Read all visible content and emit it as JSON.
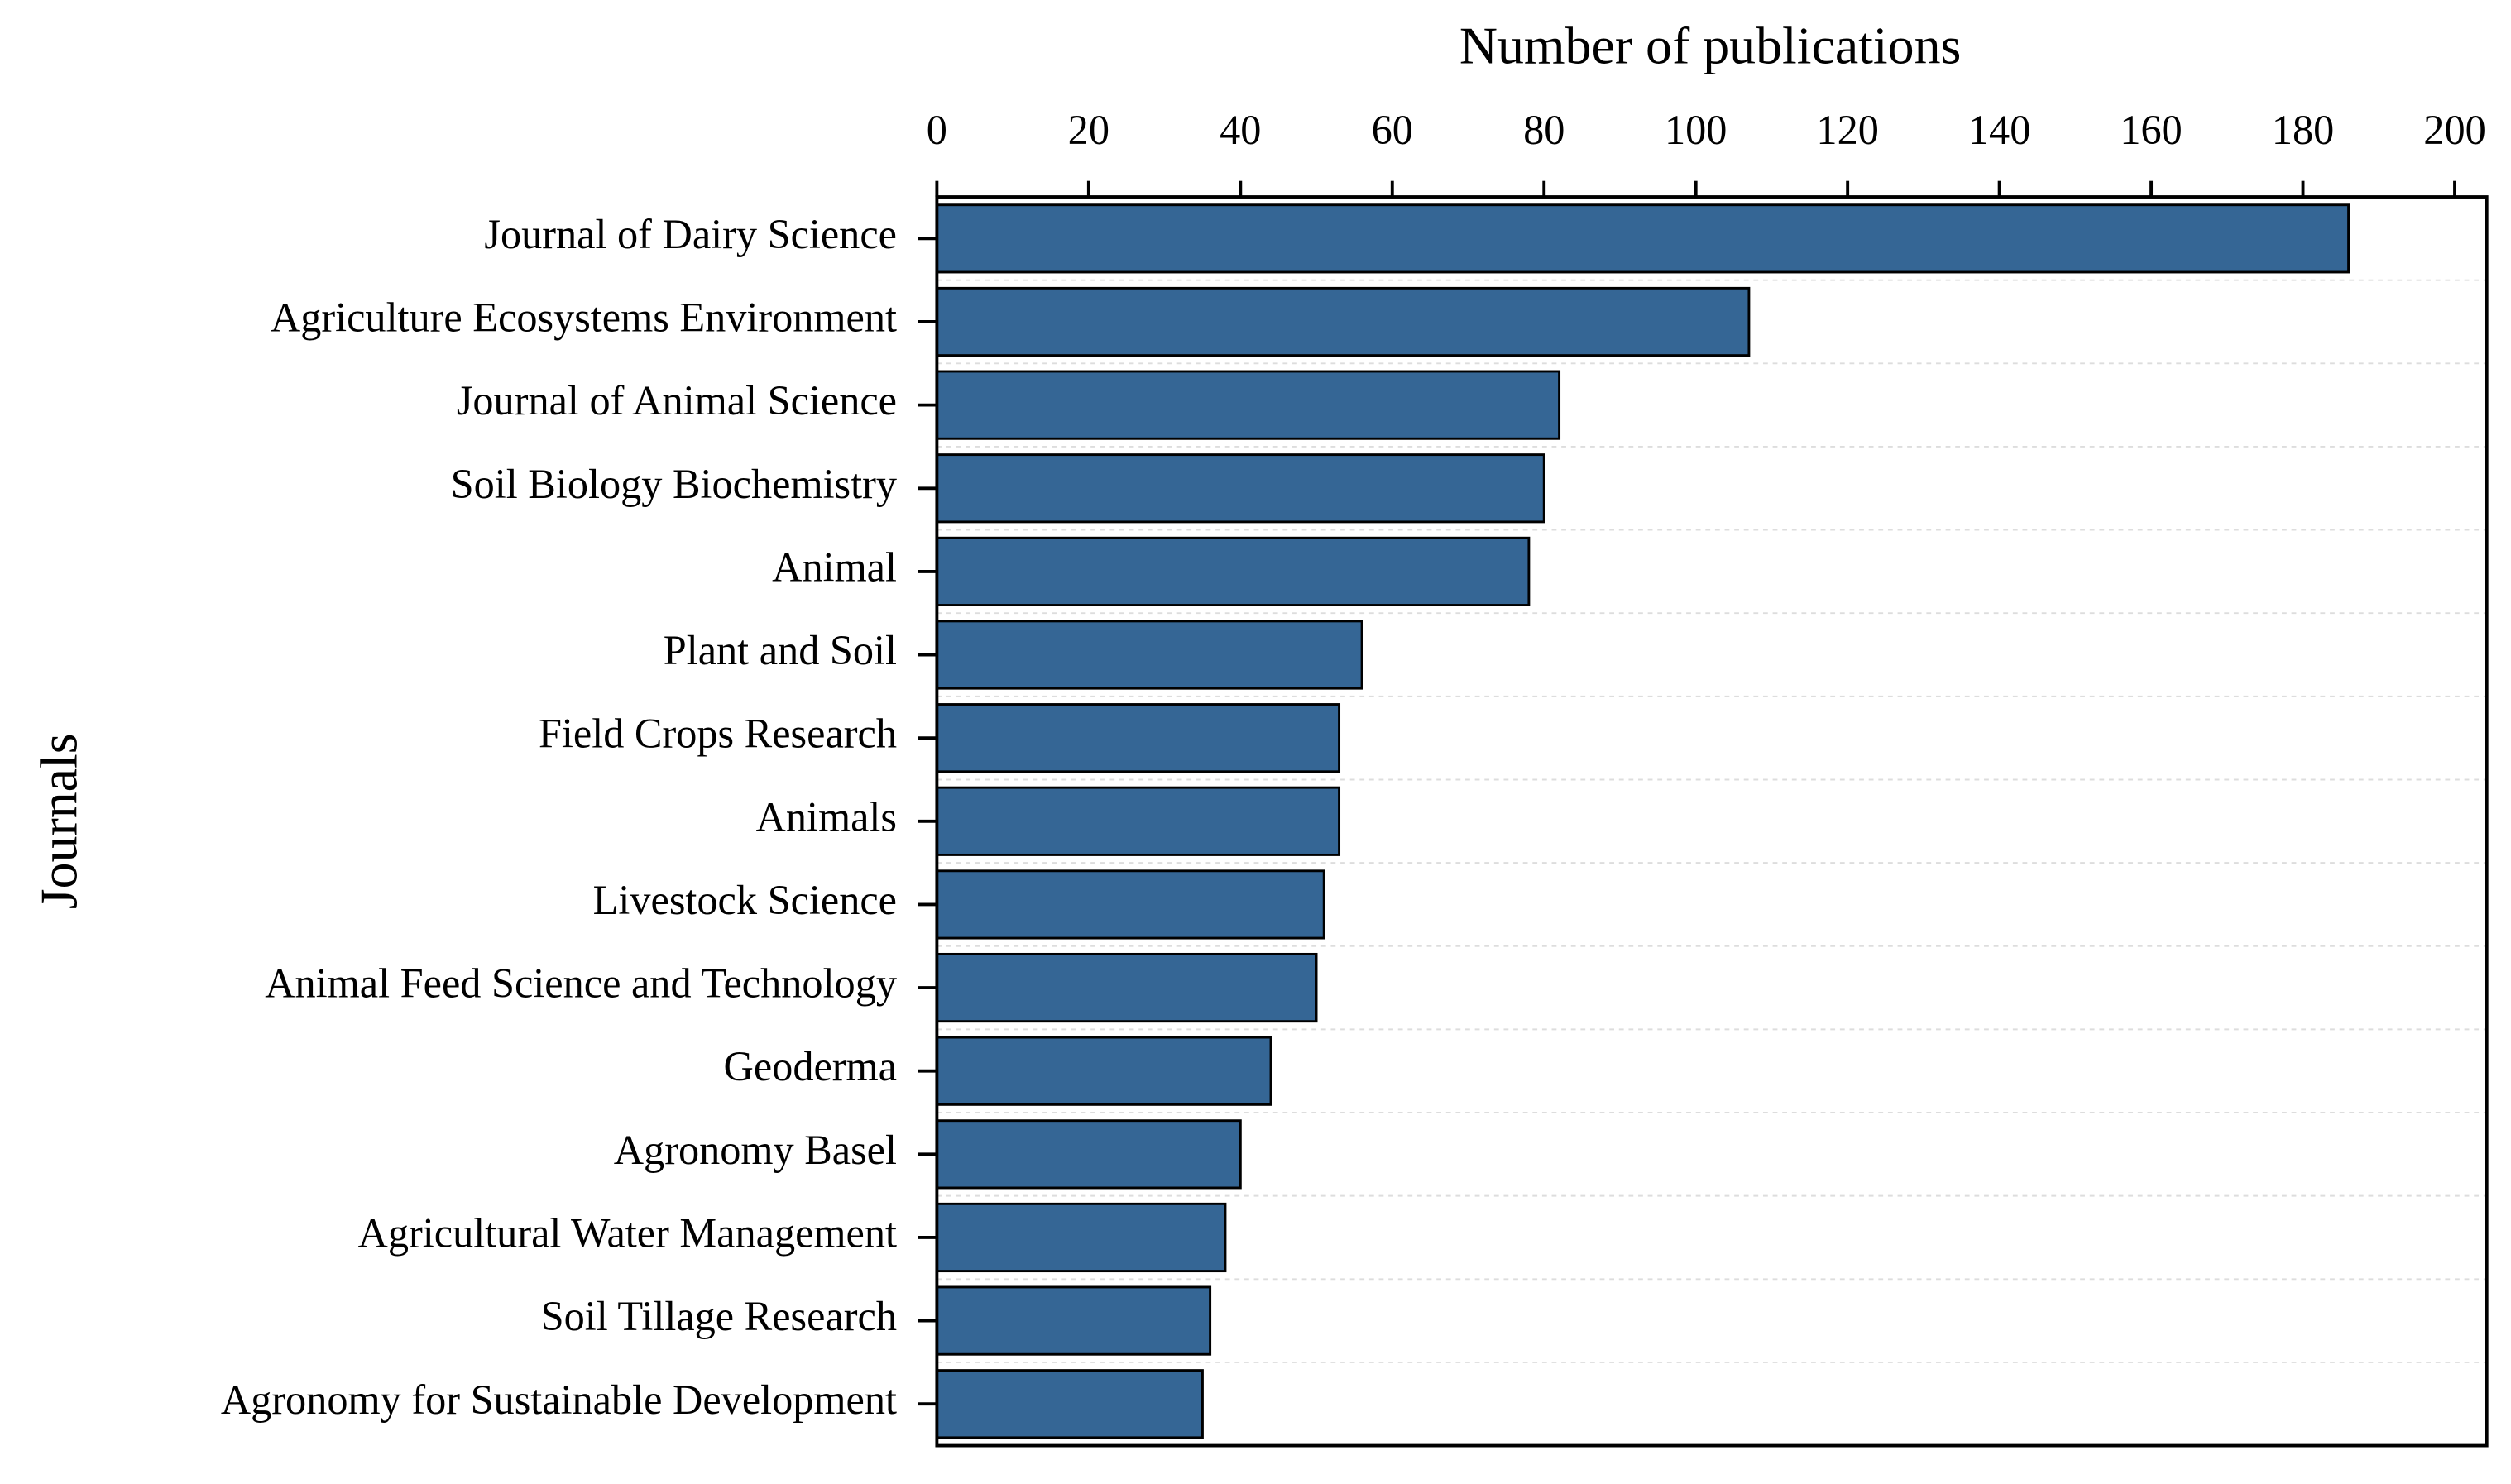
{
  "chart_data": {
    "type": "bar",
    "orientation": "horizontal",
    "x_label": "Number of publications",
    "y_label": "Journals",
    "categories": [
      "Journal of Dairy Science",
      "Agriculture Ecosystems Environment",
      "Journal of Animal Science",
      "Soil Biology Biochemistry",
      "Animal",
      "Plant and Soil",
      "Field Crops Research",
      "Animals",
      "Livestock Science",
      "Animal Feed Science and Technology",
      "Geoderma",
      "Agronomy Basel",
      "Agricultural Water Management",
      "Soil Tillage Research",
      "Agronomy for Sustainable Development"
    ],
    "values": [
      186,
      107,
      82,
      80,
      78,
      56,
      53,
      53,
      51,
      50,
      44,
      40,
      38,
      36,
      35
    ],
    "color": "#356695",
    "xlim": [
      0,
      200
    ],
    "xticks": [
      0,
      20,
      40,
      60,
      80,
      100,
      120,
      140,
      160,
      180,
      200
    ],
    "grid": true
  }
}
